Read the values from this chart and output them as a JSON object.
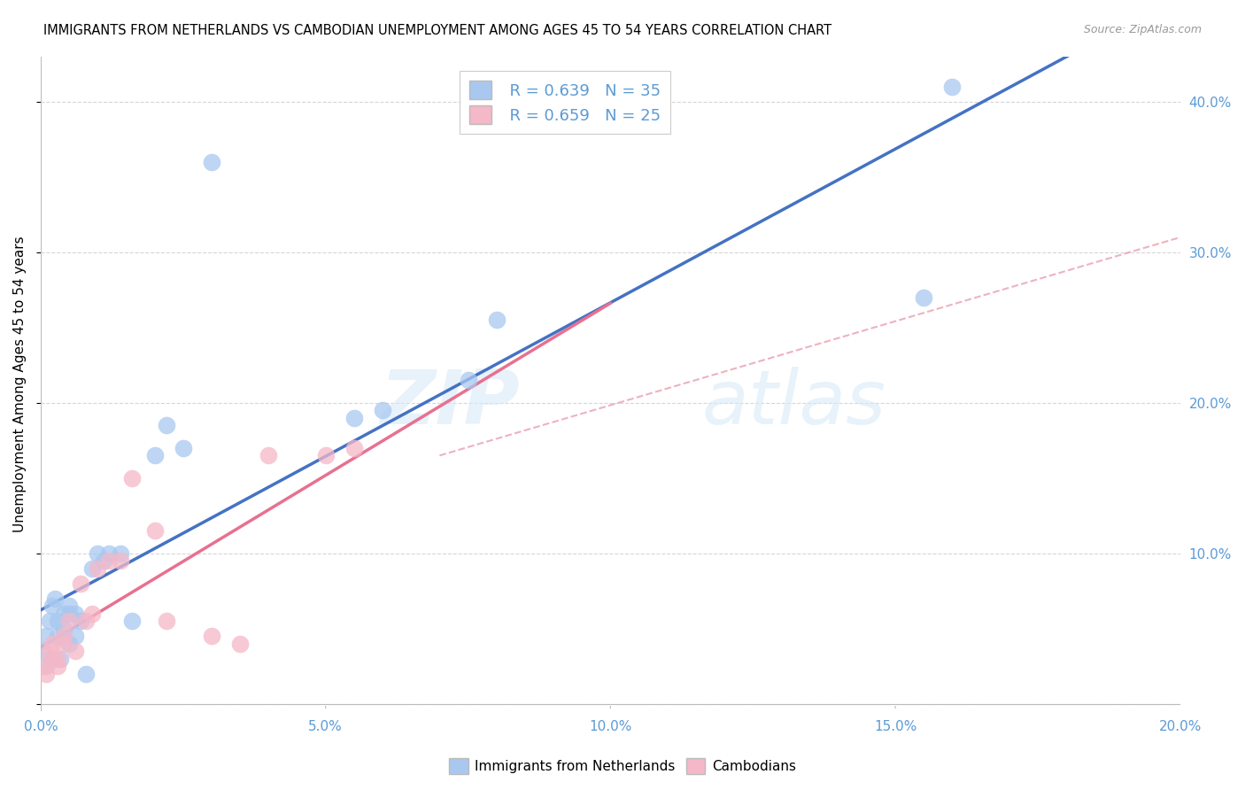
{
  "title": "IMMIGRANTS FROM NETHERLANDS VS CAMBODIAN UNEMPLOYMENT AMONG AGES 45 TO 54 YEARS CORRELATION CHART",
  "source": "Source: ZipAtlas.com",
  "tick_color": "#5b9bd5",
  "ylabel": "Unemployment Among Ages 45 to 54 years",
  "xlim": [
    0,
    0.2
  ],
  "ylim": [
    -0.005,
    0.43
  ],
  "xticks": [
    0.0,
    0.05,
    0.1,
    0.15,
    0.2
  ],
  "yticks": [
    0.0,
    0.1,
    0.2,
    0.3,
    0.4
  ],
  "xtick_labels": [
    "0.0%",
    "5.0%",
    "10.0%",
    "15.0%",
    "20.0%"
  ],
  "ytick_labels": [
    "",
    "10.0%",
    "20.0%",
    "30.0%",
    "40.0%"
  ],
  "legend_r1": "R = 0.639",
  "legend_n1": "N = 35",
  "legend_r2": "R = 0.659",
  "legend_n2": "N = 25",
  "blue_color": "#a8c8f0",
  "pink_color": "#f5b8c8",
  "line_blue": "#4472c4",
  "line_pink": "#e87090",
  "dashed_color": "#f0a0b0",
  "watermark_zip": "ZIP",
  "watermark_atlas": "atlas",
  "blue_scatter_x": [
    0.0005,
    0.001,
    0.001,
    0.0015,
    0.002,
    0.002,
    0.0025,
    0.003,
    0.003,
    0.0035,
    0.004,
    0.004,
    0.005,
    0.005,
    0.005,
    0.006,
    0.006,
    0.007,
    0.008,
    0.009,
    0.01,
    0.011,
    0.012,
    0.014,
    0.016,
    0.02,
    0.022,
    0.025,
    0.03,
    0.055,
    0.06,
    0.075,
    0.08,
    0.155,
    0.16
  ],
  "blue_scatter_y": [
    0.035,
    0.045,
    0.025,
    0.055,
    0.065,
    0.03,
    0.07,
    0.045,
    0.055,
    0.03,
    0.05,
    0.06,
    0.04,
    0.065,
    0.06,
    0.06,
    0.045,
    0.055,
    0.02,
    0.09,
    0.1,
    0.095,
    0.1,
    0.1,
    0.055,
    0.165,
    0.185,
    0.17,
    0.36,
    0.19,
    0.195,
    0.215,
    0.255,
    0.27,
    0.41
  ],
  "pink_scatter_x": [
    0.0005,
    0.001,
    0.0015,
    0.002,
    0.002,
    0.003,
    0.003,
    0.004,
    0.004,
    0.005,
    0.006,
    0.007,
    0.008,
    0.009,
    0.01,
    0.012,
    0.014,
    0.016,
    0.02,
    0.022,
    0.03,
    0.035,
    0.04,
    0.05,
    0.055
  ],
  "pink_scatter_y": [
    0.025,
    0.02,
    0.035,
    0.03,
    0.04,
    0.03,
    0.025,
    0.045,
    0.04,
    0.055,
    0.035,
    0.08,
    0.055,
    0.06,
    0.09,
    0.095,
    0.095,
    0.15,
    0.115,
    0.055,
    0.045,
    0.04,
    0.165,
    0.165,
    0.17
  ]
}
